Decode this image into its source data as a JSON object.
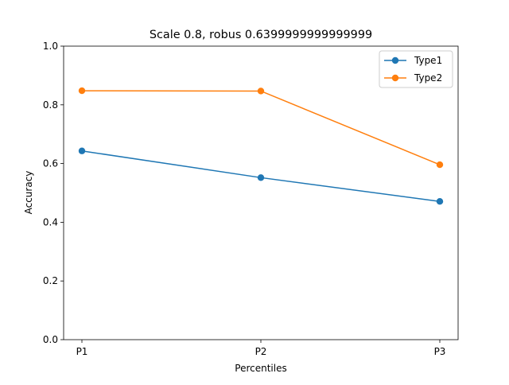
{
  "chart_data": {
    "type": "line",
    "title": "Scale 0.8, robus 0.6399999999999999",
    "xlabel": "Percentiles",
    "ylabel": "Accuracy",
    "categories": [
      "P1",
      "P2",
      "P3"
    ],
    "ylim": [
      0,
      1.0
    ],
    "yticks": [
      "0.0",
      "0.2",
      "0.4",
      "0.6",
      "0.8",
      "1.0"
    ],
    "grid": false,
    "legend_position": "upper right",
    "series": [
      {
        "name": "Type1",
        "color": "#1f77b4",
        "marker": "circle",
        "values": [
          0.643,
          0.552,
          0.471
        ]
      },
      {
        "name": "Type2",
        "color": "#ff7f0e",
        "marker": "circle",
        "values": [
          0.848,
          0.847,
          0.596
        ]
      }
    ]
  }
}
